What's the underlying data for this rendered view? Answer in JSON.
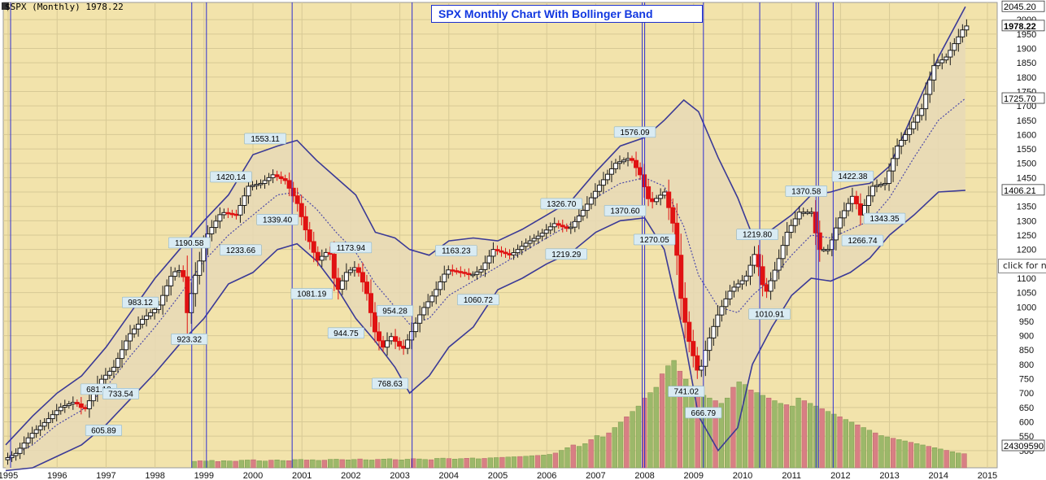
{
  "header": {
    "symbol_text": "$SPX (Monthly) 1978.22"
  },
  "title": "SPX Monthly Chart With Bollinger Band",
  "hint": "click for n",
  "colors": {
    "background": "#f2e3ab",
    "grid": "#d7c995",
    "band_fill": "#e8d9b6",
    "band_line": "#3b3a96",
    "mid_line": "#4d4aa8",
    "up": "#1a1a1a",
    "down": "#e01212",
    "vol_up": "#9cb86a",
    "vol_down": "#d87f84",
    "vline": "#2f2fd0",
    "label_bg": "#d9ebf3"
  },
  "chart_data": {
    "type": "candlestick",
    "title": "SPX Monthly Chart With Bollinger Band",
    "x_ticks": [
      "1995",
      "1996",
      "1997",
      "1998",
      "1999",
      "2000",
      "2001",
      "2002",
      "2003",
      "2004",
      "2005",
      "2006",
      "2007",
      "2008",
      "2009",
      "2010",
      "2011",
      "2012",
      "2013",
      "2014",
      "2015"
    ],
    "y_ticks": [
      2000,
      1950,
      1900,
      1850,
      1800,
      1750,
      1700,
      1650,
      1600,
      1550,
      1500,
      1450,
      1400,
      1350,
      1300,
      1250,
      1200,
      1150,
      1100,
      1050,
      1000,
      950,
      900,
      850,
      800,
      750,
      700,
      650,
      600,
      550,
      500
    ],
    "ylim": [
      440,
      2060
    ],
    "xlim": [
      1994.9,
      2015.2
    ],
    "price_tags": [
      "2045.20",
      "1978.22",
      "1725.70",
      "1406.21",
      "24309590"
    ],
    "annotations": [
      {
        "text": "1553.11",
        "x": 2000.25,
        "y": 1553.11,
        "pos": "above"
      },
      {
        "text": "1420.14",
        "x": 1999.55,
        "y": 1420.14,
        "pos": "above"
      },
      {
        "text": "1339.40",
        "x": 2000.5,
        "y": 1339.4,
        "pos": "below"
      },
      {
        "text": "1233.66",
        "x": 1999.75,
        "y": 1233.66,
        "pos": "below"
      },
      {
        "text": "1190.58",
        "x": 1998.7,
        "y": 1190.58,
        "pos": "above"
      },
      {
        "text": "983.12",
        "x": 1997.7,
        "y": 983.12,
        "pos": "above"
      },
      {
        "text": "923.32",
        "x": 1998.7,
        "y": 923.32,
        "pos": "below"
      },
      {
        "text": "681.10",
        "x": 1996.85,
        "y": 681.1,
        "pos": "above"
      },
      {
        "text": "733.54",
        "x": 1997.3,
        "y": 733.54,
        "pos": "below"
      },
      {
        "text": "605.89",
        "x": 1996.95,
        "y": 605.89,
        "pos": "below"
      },
      {
        "text": "1173.94",
        "x": 2002.0,
        "y": 1173.94,
        "pos": "above"
      },
      {
        "text": "1081.19",
        "x": 2001.2,
        "y": 1081.19,
        "pos": "below"
      },
      {
        "text": "944.75",
        "x": 2001.9,
        "y": 944.75,
        "pos": "below"
      },
      {
        "text": "954.28",
        "x": 2002.9,
        "y": 954.28,
        "pos": "above"
      },
      {
        "text": "768.63",
        "x": 2002.8,
        "y": 768.63,
        "pos": "below"
      },
      {
        "text": "1163.23",
        "x": 2004.15,
        "y": 1163.23,
        "pos": "above"
      },
      {
        "text": "1060.72",
        "x": 2004.6,
        "y": 1060.72,
        "pos": "below"
      },
      {
        "text": "1326.70",
        "x": 2006.3,
        "y": 1326.7,
        "pos": "above"
      },
      {
        "text": "1219.29",
        "x": 2006.4,
        "y": 1219.29,
        "pos": "below"
      },
      {
        "text": "1576.09",
        "x": 2007.8,
        "y": 1576.09,
        "pos": "above"
      },
      {
        "text": "1370.60",
        "x": 2007.6,
        "y": 1370.6,
        "pos": "below"
      },
      {
        "text": "1270.05",
        "x": 2008.2,
        "y": 1270.05,
        "pos": "below"
      },
      {
        "text": "741.02",
        "x": 2008.85,
        "y": 741.02,
        "pos": "below"
      },
      {
        "text": "666.79",
        "x": 2009.2,
        "y": 666.79,
        "pos": "below"
      },
      {
        "text": "1219.80",
        "x": 2010.3,
        "y": 1219.8,
        "pos": "above"
      },
      {
        "text": "1010.91",
        "x": 2010.55,
        "y": 1010.91,
        "pos": "below"
      },
      {
        "text": "1370.58",
        "x": 2011.3,
        "y": 1370.58,
        "pos": "above"
      },
      {
        "text": "1422.38",
        "x": 2012.25,
        "y": 1422.38,
        "pos": "above"
      },
      {
        "text": "1266.74",
        "x": 2012.45,
        "y": 1266.74,
        "pos": "below"
      },
      {
        "text": "1343.35",
        "x": 2012.9,
        "y": 1343.35,
        "pos": "below"
      }
    ],
    "vertical_lines_years": [
      1995.05,
      1998.75,
      1999.05,
      2000.8,
      2003.25,
      2007.95,
      2008.0,
      2009.2,
      2010.35,
      2011.5,
      2011.55,
      2011.85
    ],
    "price_path": [
      [
        1994.95,
        468
      ],
      [
        1995.2,
        490
      ],
      [
        1995.5,
        555
      ],
      [
        1995.8,
        600
      ],
      [
        1996.1,
        650
      ],
      [
        1996.4,
        670
      ],
      [
        1996.6,
        640
      ],
      [
        1996.9,
        740
      ],
      [
        1997.2,
        790
      ],
      [
        1997.5,
        900
      ],
      [
        1997.8,
        960
      ],
      [
        1998.1,
        1000
      ],
      [
        1998.4,
        1120
      ],
      [
        1998.6,
        1130
      ],
      [
        1998.7,
        980
      ],
      [
        1998.85,
        1100
      ],
      [
        1999.1,
        1250
      ],
      [
        1999.4,
        1330
      ],
      [
        1999.7,
        1320
      ],
      [
        1999.95,
        1420
      ],
      [
        2000.2,
        1430
      ],
      [
        2000.45,
        1460
      ],
      [
        2000.7,
        1440
      ],
      [
        2000.95,
        1360
      ],
      [
        2001.15,
        1250
      ],
      [
        2001.35,
        1160
      ],
      [
        2001.6,
        1200
      ],
      [
        2001.75,
        1050
      ],
      [
        2001.95,
        1120
      ],
      [
        2002.15,
        1140
      ],
      [
        2002.35,
        1060
      ],
      [
        2002.55,
        900
      ],
      [
        2002.7,
        860
      ],
      [
        2002.85,
        900
      ],
      [
        2003.1,
        850
      ],
      [
        2003.3,
        920
      ],
      [
        2003.5,
        990
      ],
      [
        2003.75,
        1050
      ],
      [
        2004.0,
        1130
      ],
      [
        2004.3,
        1120
      ],
      [
        2004.5,
        1110
      ],
      [
        2004.7,
        1130
      ],
      [
        2004.95,
        1200
      ],
      [
        2005.3,
        1180
      ],
      [
        2005.6,
        1220
      ],
      [
        2005.9,
        1250
      ],
      [
        2006.2,
        1290
      ],
      [
        2006.5,
        1270
      ],
      [
        2006.8,
        1340
      ],
      [
        2007.1,
        1420
      ],
      [
        2007.45,
        1500
      ],
      [
        2007.75,
        1520
      ],
      [
        2007.95,
        1460
      ],
      [
        2008.15,
        1360
      ],
      [
        2008.45,
        1400
      ],
      [
        2008.65,
        1270
      ],
      [
        2008.8,
        1000
      ],
      [
        2008.95,
        880
      ],
      [
        2009.15,
        760
      ],
      [
        2009.3,
        860
      ],
      [
        2009.55,
        980
      ],
      [
        2009.8,
        1060
      ],
      [
        2010.1,
        1100
      ],
      [
        2010.3,
        1190
      ],
      [
        2010.5,
        1040
      ],
      [
        2010.75,
        1150
      ],
      [
        2010.95,
        1260
      ],
      [
        2011.2,
        1330
      ],
      [
        2011.45,
        1330
      ],
      [
        2011.6,
        1200
      ],
      [
        2011.8,
        1200
      ],
      [
        2012.0,
        1300
      ],
      [
        2012.3,
        1390
      ],
      [
        2012.45,
        1320
      ],
      [
        2012.7,
        1420
      ],
      [
        2012.95,
        1430
      ],
      [
        2013.2,
        1560
      ],
      [
        2013.45,
        1620
      ],
      [
        2013.7,
        1690
      ],
      [
        2013.95,
        1840
      ],
      [
        2014.2,
        1870
      ],
      [
        2014.45,
        1940
      ],
      [
        2014.58,
        1978
      ]
    ],
    "bollinger": {
      "upper": [
        [
          1994.95,
          520
        ],
        [
          1995.5,
          620
        ],
        [
          1996.0,
          700
        ],
        [
          1996.5,
          760
        ],
        [
          1997.0,
          860
        ],
        [
          1997.5,
          980
        ],
        [
          1998.0,
          1100
        ],
        [
          1998.5,
          1200
        ],
        [
          1999.0,
          1300
        ],
        [
          1999.5,
          1390
        ],
        [
          2000.0,
          1530
        ],
        [
          2000.5,
          1560
        ],
        [
          2000.9,
          1580
        ],
        [
          2001.3,
          1510
        ],
        [
          2001.7,
          1450
        ],
        [
          2002.1,
          1390
        ],
        [
          2002.5,
          1260
        ],
        [
          2002.9,
          1240
        ],
        [
          2003.2,
          1200
        ],
        [
          2003.6,
          1180
        ],
        [
          2004.0,
          1230
        ],
        [
          2004.5,
          1240
        ],
        [
          2005.0,
          1230
        ],
        [
          2005.5,
          1270
        ],
        [
          2006.0,
          1320
        ],
        [
          2006.5,
          1370
        ],
        [
          2007.0,
          1470
        ],
        [
          2007.5,
          1560
        ],
        [
          2008.0,
          1590
        ],
        [
          2008.4,
          1650
        ],
        [
          2008.8,
          1720
        ],
        [
          2009.1,
          1680
        ],
        [
          2009.5,
          1520
        ],
        [
          2009.9,
          1380
        ],
        [
          2010.2,
          1250
        ],
        [
          2010.6,
          1270
        ],
        [
          2011.0,
          1320
        ],
        [
          2011.4,
          1390
        ],
        [
          2011.8,
          1400
        ],
        [
          2012.2,
          1420
        ],
        [
          2012.6,
          1430
        ],
        [
          2013.0,
          1490
        ],
        [
          2013.5,
          1680
        ],
        [
          2014.0,
          1870
        ],
        [
          2014.55,
          2045
        ]
      ],
      "middle": [
        [
          1994.95,
          470
        ],
        [
          1995.5,
          520
        ],
        [
          1996.0,
          590
        ],
        [
          1996.5,
          640
        ],
        [
          1997.0,
          720
        ],
        [
          1997.5,
          830
        ],
        [
          1998.0,
          930
        ],
        [
          1998.5,
          1040
        ],
        [
          1999.0,
          1160
        ],
        [
          1999.5,
          1250
        ],
        [
          2000.0,
          1320
        ],
        [
          2000.5,
          1390
        ],
        [
          2000.9,
          1400
        ],
        [
          2001.3,
          1340
        ],
        [
          2001.7,
          1260
        ],
        [
          2002.1,
          1190
        ],
        [
          2002.5,
          1080
        ],
        [
          2002.9,
          1000
        ],
        [
          2003.2,
          940
        ],
        [
          2003.6,
          960
        ],
        [
          2004.0,
          1040
        ],
        [
          2004.5,
          1090
        ],
        [
          2005.0,
          1140
        ],
        [
          2005.5,
          1190
        ],
        [
          2006.0,
          1240
        ],
        [
          2006.5,
          1290
        ],
        [
          2007.0,
          1380
        ],
        [
          2007.5,
          1430
        ],
        [
          2008.0,
          1450
        ],
        [
          2008.4,
          1420
        ],
        [
          2008.8,
          1280
        ],
        [
          2009.1,
          1110
        ],
        [
          2009.5,
          1000
        ],
        [
          2009.9,
          980
        ],
        [
          2010.2,
          1040
        ],
        [
          2010.6,
          1100
        ],
        [
          2011.0,
          1180
        ],
        [
          2011.4,
          1250
        ],
        [
          2011.8,
          1240
        ],
        [
          2012.2,
          1270
        ],
        [
          2012.6,
          1300
        ],
        [
          2013.0,
          1380
        ],
        [
          2013.5,
          1520
        ],
        [
          2014.0,
          1650
        ],
        [
          2014.55,
          1726
        ]
      ],
      "lower": [
        [
          1994.95,
          430
        ],
        [
          1995.5,
          440
        ],
        [
          1996.0,
          480
        ],
        [
          1996.5,
          520
        ],
        [
          1997.0,
          590
        ],
        [
          1997.5,
          680
        ],
        [
          1998.0,
          770
        ],
        [
          1998.5,
          870
        ],
        [
          1999.0,
          960
        ],
        [
          1999.5,
          1080
        ],
        [
          2000.0,
          1120
        ],
        [
          2000.5,
          1200
        ],
        [
          2000.9,
          1220
        ],
        [
          2001.3,
          1160
        ],
        [
          2001.7,
          1070
        ],
        [
          2002.1,
          960
        ],
        [
          2002.5,
          880
        ],
        [
          2002.9,
          790
        ],
        [
          2003.2,
          700
        ],
        [
          2003.6,
          760
        ],
        [
          2004.0,
          860
        ],
        [
          2004.5,
          930
        ],
        [
          2005.0,
          1060
        ],
        [
          2005.5,
          1100
        ],
        [
          2006.0,
          1150
        ],
        [
          2006.5,
          1190
        ],
        [
          2007.0,
          1260
        ],
        [
          2007.5,
          1300
        ],
        [
          2008.0,
          1310
        ],
        [
          2008.4,
          1200
        ],
        [
          2008.8,
          900
        ],
        [
          2009.1,
          620
        ],
        [
          2009.5,
          500
        ],
        [
          2009.9,
          580
        ],
        [
          2010.2,
          800
        ],
        [
          2010.6,
          930
        ],
        [
          2011.0,
          1040
        ],
        [
          2011.4,
          1100
        ],
        [
          2011.8,
          1090
        ],
        [
          2012.2,
          1120
        ],
        [
          2012.6,
          1170
        ],
        [
          2013.0,
          1250
        ],
        [
          2013.5,
          1320
        ],
        [
          2014.0,
          1400
        ],
        [
          2014.55,
          1406
        ]
      ]
    },
    "volume_start_year": 1998.75,
    "volume_max_value": 1000,
    "volume_pattern": [
      48,
      52,
      50,
      55,
      47,
      53,
      51,
      49,
      56,
      58,
      60,
      52,
      50,
      57,
      59,
      54,
      53,
      61,
      62,
      58,
      60,
      55,
      57,
      63,
      64,
      61,
      59,
      62,
      66,
      60,
      58,
      63,
      65,
      67,
      61,
      59,
      64,
      68,
      66,
      62,
      60,
      70,
      72,
      69,
      65,
      68,
      71,
      73,
      67,
      70,
      74,
      76,
      78,
      80,
      82,
      84,
      86,
      90,
      92,
      95,
      100,
      110,
      130,
      150,
      170,
      160,
      180,
      210,
      240,
      230,
      260,
      300,
      340,
      380,
      420,
      460,
      520,
      560,
      600,
      700,
      760,
      800,
      720,
      660,
      600,
      560,
      540,
      520,
      500,
      480,
      520,
      600,
      640,
      620,
      580,
      560,
      540,
      520,
      500,
      480,
      470,
      460,
      520,
      500,
      480,
      460,
      440,
      420,
      400,
      380,
      360,
      340,
      320,
      300,
      280,
      260,
      240,
      230,
      220,
      210,
      200,
      190,
      180,
      170,
      160,
      150,
      140,
      130,
      120,
      110,
      105
    ]
  }
}
